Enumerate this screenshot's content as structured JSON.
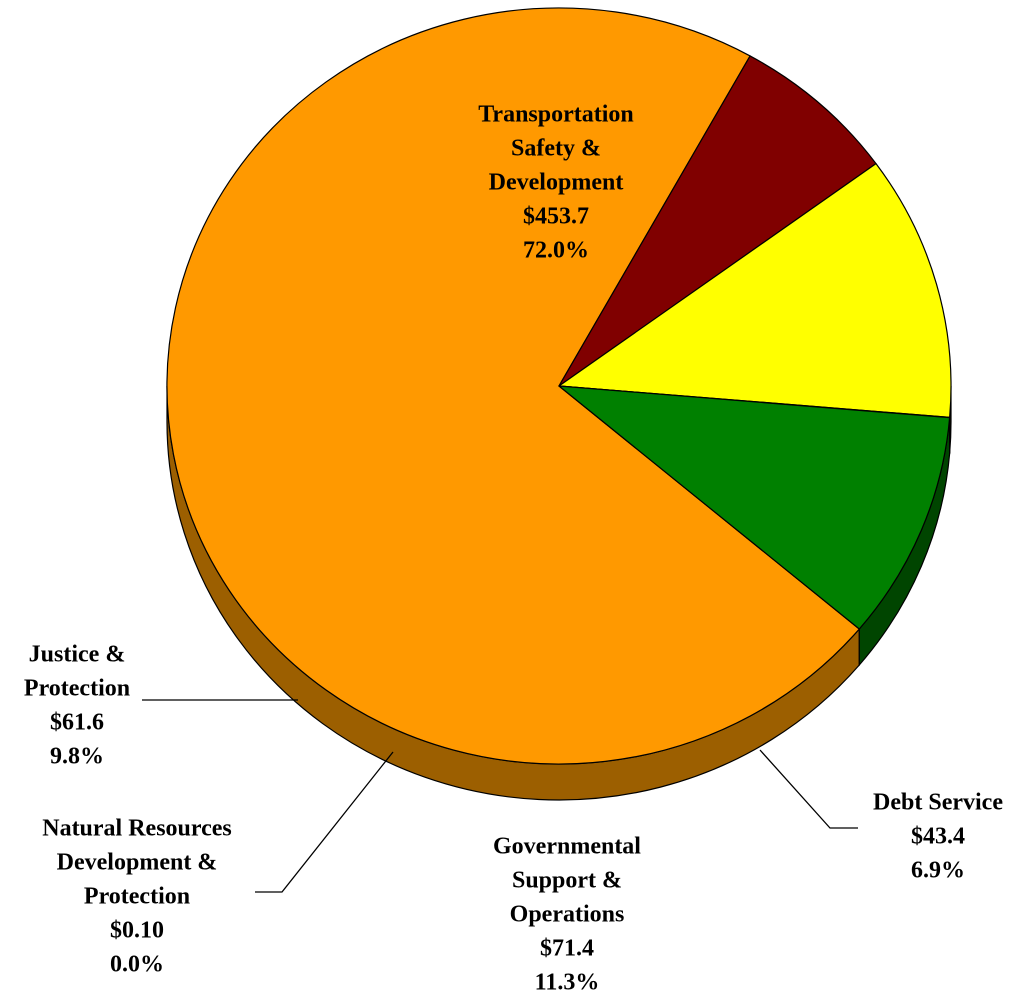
{
  "chart_data": {
    "type": "pie",
    "title": "",
    "three_d": true,
    "slices": [
      {
        "id": "transportation",
        "label_lines": [
          "Transportation",
          "Safety &",
          "Development"
        ],
        "value": 453.7,
        "value_label": "$453.7",
        "percent_label": "72.0%",
        "color": "#FF9900",
        "side_color": "#9C5F00"
      },
      {
        "id": "debt",
        "label_lines": [
          "Debt Service"
        ],
        "value": 43.4,
        "value_label": "$43.4",
        "percent_label": "6.9%",
        "color": "#800000",
        "side_color": "#4A0000"
      },
      {
        "id": "governmental",
        "label_lines": [
          "Governmental",
          "Support &",
          "Operations"
        ],
        "value": 71.4,
        "value_label": "$71.4",
        "percent_label": "11.3%",
        "color": "#FFFF00",
        "side_color": "#8F8F00"
      },
      {
        "id": "natural",
        "label_lines": [
          "Natural Resources",
          "Development &",
          "Protection"
        ],
        "value": 0.1,
        "value_label": "$0.10",
        "percent_label": "0.0%",
        "color": "#008080",
        "side_color": "#004848"
      },
      {
        "id": "justice",
        "label_lines": [
          "Justice &",
          "Protection"
        ],
        "value": 61.6,
        "value_label": "$61.6",
        "percent_label": "9.8%",
        "color": "#008000",
        "side_color": "#004500"
      }
    ]
  }
}
